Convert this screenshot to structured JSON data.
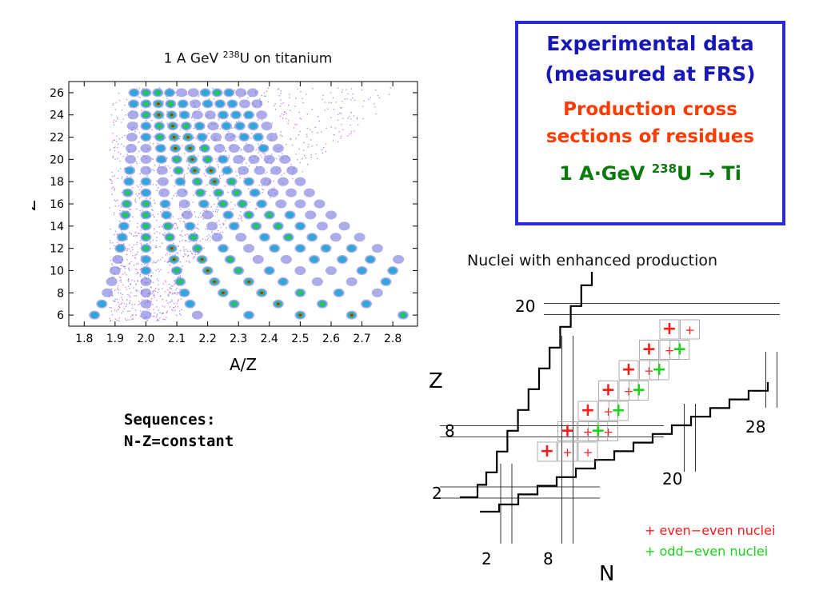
{
  "scatter": {
    "title_prefix": "1 A GeV ",
    "title_sup": "238",
    "title_suffix": "U on titanium",
    "xlabel": "A/Z",
    "ylabel": "Z"
  },
  "infobox": {
    "line1": "Experimental data",
    "line2": "(measured at FRS)",
    "line3": "Production cross",
    "line4": "sections of residues",
    "reaction_prefix": "1 A·GeV ",
    "reaction_sup": "238",
    "reaction_suffix": "U → Ti"
  },
  "sequences": {
    "line1": "Sequences:",
    "line2": "N-Z=constant"
  },
  "nuclei_chart": {
    "title": "Nuclei with enhanced production",
    "xlabel": "N",
    "ylabel": "Z",
    "magic_labels": {
      "z20": "20",
      "z8": "8",
      "z2": "2",
      "n2": "2",
      "n8": "8",
      "n20": "20",
      "n28": "28"
    },
    "legend_even": "+ even−even nuclei",
    "legend_odd": "+ odd−even nuclei",
    "colors": {
      "even": "#ff1a1a",
      "odd": "#19d419"
    }
  },
  "chart_data": [
    {
      "type": "scatter",
      "title": "1 A GeV 238U on titanium",
      "xlabel": "A/Z",
      "ylabel": "Z",
      "xlim": [
        1.75,
        2.88
      ],
      "ylim": [
        5,
        27
      ],
      "xticks": [
        1.8,
        1.9,
        2.0,
        2.1,
        2.2,
        2.3,
        2.4,
        2.5,
        2.6,
        2.7,
        2.8
      ],
      "yticks": [
        6,
        8,
        10,
        12,
        14,
        16,
        18,
        20,
        22,
        24,
        26
      ],
      "sequences_N_minus_Z": [
        -1,
        0,
        1,
        2,
        3,
        4,
        5,
        6,
        7,
        8,
        9
      ],
      "z_range": [
        6,
        26
      ]
    },
    {
      "type": "table",
      "title": "Nuclei with enhanced production",
      "xlabel": "N",
      "ylabel": "Z",
      "magic_N": [
        2,
        8,
        20,
        28
      ],
      "magic_Z": [
        2,
        8,
        20
      ],
      "even_even": [
        [
          6,
          6
        ],
        [
          8,
          6
        ],
        [
          10,
          6
        ],
        [
          8,
          8
        ],
        [
          10,
          8
        ],
        [
          12,
          8
        ],
        [
          10,
          10
        ],
        [
          12,
          10
        ],
        [
          12,
          12
        ],
        [
          14,
          12
        ],
        [
          14,
          14
        ],
        [
          16,
          14
        ],
        [
          16,
          16
        ],
        [
          18,
          16
        ],
        [
          18,
          18
        ],
        [
          20,
          18
        ]
      ],
      "odd_even": [
        [
          11,
          8
        ],
        [
          13,
          10
        ],
        [
          15,
          12
        ],
        [
          17,
          14
        ],
        [
          19,
          16
        ]
      ]
    }
  ]
}
